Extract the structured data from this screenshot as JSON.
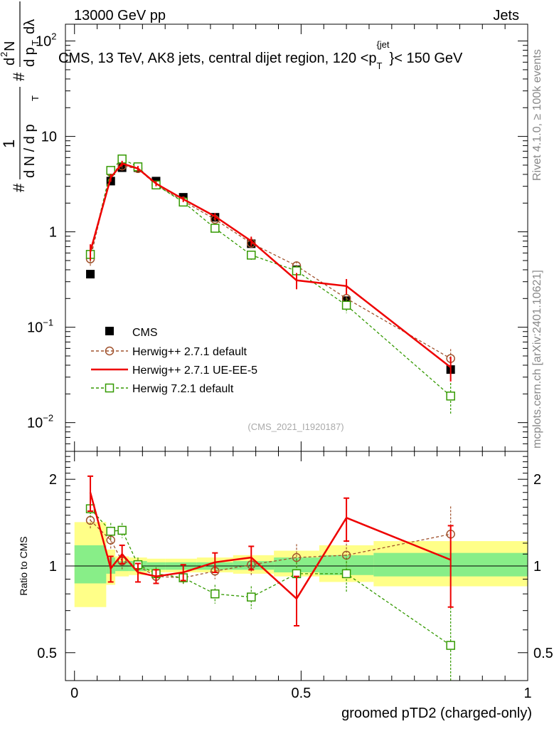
{
  "header": {
    "energy_label": "13000 GeV pp",
    "category_label": "Jets"
  },
  "side_labels": {
    "rivet": "Rivet 4.1.0, ≥ 100k events",
    "mcplots": "mcplots.cern.ch [arXiv:2401.10621]"
  },
  "colors": {
    "cms": "#000000",
    "herwig_pp_default": "#a0522d",
    "herwig_pp_ueee5": "#ee0000",
    "herwig7": "#339900",
    "band_outer": "#ffff88",
    "band_inner": "#88ee88"
  },
  "chart_data": [
    {
      "type": "scatter",
      "title": "CMS, 13 TeV, AK8 jets, central dijet region, 120 < p_T^{jet} < 150 GeV",
      "title_parts": {
        "main": "CMS, 13 TeV, AK8 jets, central dijet region, 120 <p",
        "sub": "T",
        "sup": "{jet",
        "end": "}< 150 GeV"
      },
      "ylabel": "1 / (dN/dp_T) · d²N / (dp_T dλ)",
      "ylabel_parts": {
        "hash1": "#",
        "one": "1",
        "den": "d N / d p",
        "T": "T",
        "hash2": "#",
        "num2": "d",
        "sup2": "2",
        "numN": "N",
        "den2": "d p",
        "lam": "dλ"
      },
      "yscale": "log",
      "ylim": [
        0.005,
        150
      ],
      "yticks": [
        {
          "v": 0.01,
          "base": "10",
          "exp": "−2"
        },
        {
          "v": 0.1,
          "base": "10",
          "exp": "−1"
        },
        {
          "v": 1,
          "base": "1",
          "exp": ""
        },
        {
          "v": 10,
          "base": "10",
          "exp": ""
        },
        {
          "v": 100,
          "base": "10",
          "exp": "2"
        }
      ],
      "annotation": "(CMS_2021_I1920187)",
      "legend": {
        "placement": "middle-left",
        "entries": [
          "CMS",
          "Herwig++ 2.7.1 default",
          "Herwig++ 2.7.1 UE-EE-5",
          "Herwig 7.2.1 default"
        ]
      },
      "x": [
        0.035,
        0.08,
        0.105,
        0.14,
        0.18,
        0.24,
        0.31,
        0.39,
        0.49,
        0.6,
        0.83
      ],
      "series": [
        {
          "name": "CMS",
          "values": [
            0.36,
            3.4,
            4.7,
            4.7,
            3.4,
            2.3,
            1.42,
            0.75,
            0.4,
            0.19,
            0.036
          ]
        },
        {
          "name": "Herwig++ 2.7.1 default",
          "values": [
            0.52,
            4.2,
            4.9,
            4.6,
            3.1,
            2.1,
            1.35,
            0.76,
            0.44,
            0.2,
            0.047
          ],
          "err": [
            0.08,
            0.3,
            0.3,
            0.3,
            0.2,
            0.15,
            0.1,
            0.07,
            0.05,
            0.03,
            0.012
          ]
        },
        {
          "name": "Herwig++ 2.7.1 UE-EE-5",
          "values": [
            0.62,
            3.7,
            5.2,
            4.6,
            3.2,
            2.2,
            1.45,
            0.8,
            0.31,
            0.27,
            0.038
          ],
          "err": [
            0.12,
            0.35,
            0.35,
            0.3,
            0.2,
            0.15,
            0.12,
            0.09,
            0.06,
            0.05,
            0.011
          ]
        },
        {
          "name": "Herwig 7.2.1 default",
          "values": [
            0.58,
            4.4,
            5.8,
            4.8,
            3.1,
            2.05,
            1.09,
            0.57,
            0.39,
            0.17,
            0.019
          ],
          "err": [
            0.1,
            0.3,
            0.35,
            0.3,
            0.2,
            0.15,
            0.1,
            0.06,
            0.05,
            0.03,
            0.007
          ]
        }
      ]
    },
    {
      "type": "scatter",
      "ylabel": "Ratio to CMS",
      "xlabel": "groomed pTD2 (charged-only)",
      "xlim": [
        -0.02,
        1.0
      ],
      "xticks": [
        0,
        0.5,
        1
      ],
      "xtick_labels": [
        "0",
        "0.5",
        "1"
      ],
      "ylim": [
        0.4,
        2.5
      ],
      "yticks": [
        0.5,
        1,
        2
      ],
      "ytick_labels": [
        "0.5",
        "1",
        "2"
      ],
      "bins": [
        [
          0,
          0.07
        ],
        [
          0.07,
          0.09
        ],
        [
          0.09,
          0.12
        ],
        [
          0.12,
          0.16
        ],
        [
          0.16,
          0.2
        ],
        [
          0.2,
          0.27
        ],
        [
          0.27,
          0.35
        ],
        [
          0.35,
          0.44
        ],
        [
          0.44,
          0.54
        ],
        [
          0.54,
          0.66
        ],
        [
          0.66,
          1.0
        ]
      ],
      "band_outer": [
        [
          0.72,
          1.42
        ],
        [
          0.86,
          1.14
        ],
        [
          0.92,
          1.08
        ],
        [
          0.93,
          1.07
        ],
        [
          0.95,
          1.06
        ],
        [
          0.95,
          1.06
        ],
        [
          0.95,
          1.07
        ],
        [
          0.94,
          1.09
        ],
        [
          0.92,
          1.13
        ],
        [
          0.88,
          1.18
        ],
        [
          0.85,
          1.22
        ]
      ],
      "band_inner": [
        [
          0.87,
          1.18
        ],
        [
          0.94,
          1.07
        ],
        [
          0.96,
          1.04
        ],
        [
          0.96,
          1.04
        ],
        [
          0.97,
          1.03
        ],
        [
          0.97,
          1.03
        ],
        [
          0.97,
          1.03
        ],
        [
          0.97,
          1.04
        ],
        [
          0.95,
          1.07
        ],
        [
          0.93,
          1.09
        ],
        [
          0.92,
          1.11
        ]
      ],
      "series": [
        {
          "name": "Herwig++ 2.7.1 default",
          "values": [
            1.44,
            1.23,
            1.04,
            1.0,
            0.92,
            0.91,
            0.96,
            1.01,
            1.07,
            1.09,
            1.29
          ],
          "err": [
            0.1,
            0.08,
            0.07,
            0.06,
            0.05,
            0.05,
            0.06,
            0.08,
            0.12,
            0.14,
            0.32
          ]
        },
        {
          "name": "Herwig++ 2.7.1 UE-EE-5",
          "values": [
            1.8,
            0.98,
            1.1,
            0.95,
            0.92,
            0.95,
            1.03,
            1.07,
            0.77,
            1.47,
            1.05
          ],
          "err": [
            0.25,
            0.1,
            0.08,
            0.07,
            0.05,
            0.06,
            0.08,
            0.1,
            0.15,
            0.25,
            0.33
          ]
        },
        {
          "name": "Herwig 7.2.1 default",
          "values": [
            1.58,
            1.32,
            1.33,
            1.01,
            0.94,
            0.91,
            0.8,
            0.78,
            0.94,
            0.94,
            0.53
          ],
          "err": [
            0.1,
            0.09,
            0.08,
            0.06,
            0.05,
            0.05,
            0.06,
            0.07,
            0.12,
            0.13,
            0.21
          ]
        }
      ]
    }
  ]
}
